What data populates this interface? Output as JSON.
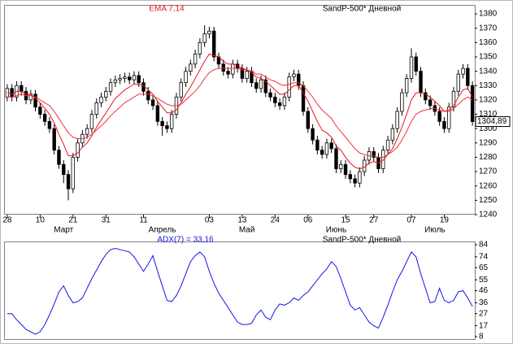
{
  "chart_data": [
    {
      "type": "candlestick",
      "title": "EMA 7,14",
      "subtitle": "SandP-500* Дневной",
      "categories": [
        "28",
        null,
        null,
        null,
        null,
        null,
        null,
        "10",
        null,
        null,
        null,
        null,
        null,
        null,
        "21",
        null,
        null,
        null,
        null,
        null,
        null,
        "31",
        null,
        null,
        null,
        null,
        null,
        null,
        null,
        "11",
        null,
        null,
        null,
        null,
        null,
        null,
        null,
        null,
        null,
        null,
        null,
        null,
        null,
        "03",
        null,
        null,
        null,
        null,
        null,
        null,
        "13",
        null,
        null,
        null,
        null,
        null,
        null,
        "24",
        null,
        null,
        null,
        null,
        null,
        null,
        "06",
        null,
        null,
        null,
        null,
        null,
        null,
        null,
        "15",
        null,
        null,
        null,
        null,
        null,
        "27",
        null,
        null,
        null,
        null,
        null,
        null,
        null,
        "07",
        null,
        null,
        null,
        null,
        null,
        null,
        "19",
        null,
        null,
        null,
        null,
        null,
        null
      ],
      "months": [
        null,
        null,
        null,
        null,
        null,
        null,
        null,
        null,
        null,
        null,
        null,
        null,
        "Март",
        null,
        null,
        null,
        null,
        null,
        null,
        null,
        null,
        null,
        null,
        null,
        null,
        null,
        null,
        null,
        null,
        null,
        null,
        null,
        null,
        "Апрель",
        null,
        null,
        null,
        null,
        null,
        null,
        null,
        null,
        null,
        null,
        null,
        null,
        null,
        null,
        null,
        null,
        null,
        "Май",
        null,
        null,
        null,
        null,
        null,
        null,
        null,
        null,
        null,
        null,
        null,
        null,
        null,
        null,
        null,
        null,
        null,
        null,
        "Июнь",
        null,
        null,
        null,
        null,
        null,
        null,
        null,
        null,
        null,
        null,
        null,
        null,
        null,
        null,
        null,
        null,
        null,
        null,
        null,
        null,
        "Июль",
        null,
        null,
        null,
        null,
        null,
        null,
        null,
        null
      ],
      "open": [
        1322,
        1328,
        1322,
        1330,
        1326,
        1320,
        1324,
        1315,
        1310,
        1305,
        1300,
        1285,
        1275,
        1268,
        1258,
        1280,
        1290,
        1296,
        1300,
        1310,
        1318,
        1322,
        1326,
        1332,
        1334,
        1335,
        1336,
        1334,
        1337,
        1332,
        1326,
        1320,
        1316,
        1305,
        1302,
        1300,
        1310,
        1322,
        1332,
        1340,
        1345,
        1352,
        1360,
        1366,
        1368,
        1350,
        1345,
        1340,
        1338,
        1345,
        1342,
        1335,
        1340,
        1332,
        1328,
        1334,
        1325,
        1322,
        1318,
        1316,
        1322,
        1336,
        1338,
        1330,
        1312,
        1300,
        1292,
        1285,
        1282,
        1290,
        1286,
        1272,
        1275,
        1268,
        1265,
        1262,
        1270,
        1278,
        1284,
        1280,
        1272,
        1285,
        1292,
        1300,
        1312,
        1325,
        1335,
        1350,
        1340,
        1325,
        1320,
        1316,
        1312,
        1305,
        1300,
        1315,
        1326,
        1338,
        1342,
        1330
      ],
      "high": [
        1331,
        1331,
        1333,
        1333,
        1329,
        1327,
        1327,
        1318,
        1313,
        1308,
        1303,
        1288,
        1278,
        1271,
        1283,
        1293,
        1299,
        1303,
        1313,
        1321,
        1325,
        1329,
        1335,
        1337,
        1338,
        1339,
        1339,
        1340,
        1340,
        1335,
        1329,
        1323,
        1319,
        1308,
        1305,
        1313,
        1325,
        1335,
        1343,
        1348,
        1355,
        1363,
        1372,
        1371,
        1371,
        1353,
        1348,
        1343,
        1348,
        1348,
        1345,
        1343,
        1343,
        1335,
        1337,
        1337,
        1328,
        1325,
        1321,
        1325,
        1339,
        1341,
        1341,
        1333,
        1315,
        1303,
        1295,
        1288,
        1293,
        1293,
        1289,
        1278,
        1278,
        1271,
        1268,
        1273,
        1281,
        1287,
        1287,
        1283,
        1288,
        1295,
        1303,
        1315,
        1328,
        1338,
        1356,
        1353,
        1343,
        1328,
        1323,
        1319,
        1315,
        1308,
        1318,
        1329,
        1341,
        1345,
        1345,
        1333
      ],
      "low": [
        1319,
        1319,
        1319,
        1323,
        1317,
        1317,
        1312,
        1307,
        1302,
        1297,
        1282,
        1272,
        1262,
        1250,
        1255,
        1277,
        1287,
        1293,
        1297,
        1307,
        1315,
        1319,
        1323,
        1329,
        1331,
        1332,
        1331,
        1331,
        1329,
        1323,
        1317,
        1313,
        1302,
        1295,
        1297,
        1297,
        1307,
        1319,
        1329,
        1337,
        1342,
        1349,
        1357,
        1363,
        1347,
        1342,
        1337,
        1335,
        1335,
        1339,
        1332,
        1332,
        1329,
        1325,
        1325,
        1322,
        1319,
        1315,
        1313,
        1313,
        1319,
        1333,
        1327,
        1309,
        1297,
        1289,
        1282,
        1279,
        1279,
        1283,
        1269,
        1269,
        1265,
        1262,
        1259,
        1259,
        1267,
        1275,
        1277,
        1269,
        1269,
        1282,
        1289,
        1297,
        1309,
        1322,
        1332,
        1337,
        1322,
        1317,
        1313,
        1309,
        1302,
        1297,
        1297,
        1312,
        1323,
        1335,
        1327,
        1302
      ],
      "close": [
        1328,
        1322,
        1330,
        1326,
        1320,
        1324,
        1315,
        1310,
        1305,
        1300,
        1285,
        1275,
        1268,
        1258,
        1280,
        1290,
        1296,
        1300,
        1310,
        1318,
        1322,
        1326,
        1332,
        1334,
        1335,
        1336,
        1334,
        1337,
        1332,
        1326,
        1320,
        1316,
        1305,
        1302,
        1300,
        1310,
        1322,
        1332,
        1340,
        1345,
        1352,
        1360,
        1366,
        1368,
        1350,
        1345,
        1340,
        1338,
        1345,
        1342,
        1335,
        1340,
        1332,
        1328,
        1334,
        1325,
        1322,
        1318,
        1316,
        1322,
        1336,
        1338,
        1330,
        1312,
        1300,
        1292,
        1285,
        1282,
        1290,
        1286,
        1272,
        1275,
        1268,
        1265,
        1262,
        1270,
        1278,
        1284,
        1280,
        1272,
        1285,
        1292,
        1300,
        1312,
        1325,
        1335,
        1350,
        1340,
        1325,
        1320,
        1316,
        1312,
        1305,
        1300,
        1315,
        1326,
        1338,
        1342,
        1330,
        1304.89
      ],
      "series": [
        {
          "color": "#e8141e",
          "values": [
            1325,
            1324,
            1326,
            1326,
            1324,
            1324,
            1321,
            1318,
            1314,
            1310,
            1304,
            1296,
            1289,
            1281,
            1281,
            1283,
            1287,
            1290,
            1295,
            1301,
            1306,
            1311,
            1316,
            1321,
            1324,
            1327,
            1329,
            1331,
            1331,
            1330,
            1327,
            1324,
            1319,
            1315,
            1311,
            1311,
            1313,
            1318,
            1324,
            1329,
            1335,
            1341,
            1347,
            1352,
            1351,
            1350,
            1347,
            1345,
            1345,
            1344,
            1342,
            1341,
            1339,
            1336,
            1335,
            1333,
            1330,
            1327,
            1324,
            1324,
            1327,
            1330,
            1330,
            1325,
            1319,
            1312,
            1305,
            1299,
            1297,
            1294,
            1288,
            1285,
            1280,
            1276,
            1273,
            1272,
            1273,
            1276,
            1277,
            1276,
            1278,
            1282,
            1286,
            1293,
            1301,
            1310,
            1320,
            1325,
            1325,
            1324,
            1322,
            1319,
            1316,
            1312,
            1313,
            1316,
            1322,
            1327,
            1328,
            1322
          ]
        },
        {
          "color": "#f0323c",
          "values": [
            1322,
            1322,
            1323,
            1324,
            1323,
            1323,
            1322,
            1320,
            1318,
            1316,
            1312,
            1307,
            1302,
            1297,
            1294,
            1293,
            1293,
            1294,
            1296,
            1299,
            1302,
            1305,
            1309,
            1312,
            1315,
            1318,
            1320,
            1322,
            1324,
            1324,
            1324,
            1323,
            1321,
            1319,
            1317,
            1316,
            1316,
            1317,
            1320,
            1323,
            1326,
            1330,
            1335,
            1339,
            1341,
            1342,
            1342,
            1342,
            1342,
            1342,
            1341,
            1341,
            1340,
            1338,
            1338,
            1336,
            1334,
            1333,
            1331,
            1330,
            1331,
            1332,
            1332,
            1330,
            1326,
            1322,
            1317,
            1313,
            1310,
            1307,
            1302,
            1298,
            1294,
            1290,
            1286,
            1283,
            1282,
            1281,
            1281,
            1280,
            1280,
            1282,
            1284,
            1287,
            1292,
            1298,
            1305,
            1310,
            1312,
            1313,
            1314,
            1314,
            1313,
            1312,
            1312,
            1314,
            1317,
            1320,
            1322,
            1320
          ]
        }
      ],
      "last_price": {
        "value": 1304.89,
        "label": "1304,89"
      },
      "ylim": [
        1240,
        1384
      ],
      "yticks": [
        1240,
        1250,
        1260,
        1270,
        1280,
        1290,
        1300,
        1310,
        1320,
        1330,
        1340,
        1350,
        1360,
        1370,
        1380
      ]
    },
    {
      "type": "line",
      "title": "ADX(7) = 33,16",
      "subtitle": "SandP-500* Дневной",
      "color": "#1414e6",
      "values": [
        27,
        27,
        22,
        18,
        14,
        12,
        10,
        12,
        18,
        26,
        35,
        45,
        50,
        42,
        36,
        37,
        40,
        48,
        56,
        63,
        70,
        76,
        80,
        81,
        80,
        79,
        78,
        74,
        68,
        62,
        68,
        75,
        62,
        50,
        38,
        37,
        42,
        50,
        60,
        70,
        75,
        78,
        74,
        62,
        52,
        44,
        38,
        32,
        26,
        20,
        18,
        18,
        19,
        26,
        30,
        24,
        22,
        30,
        35,
        34,
        36,
        40,
        38,
        42,
        45,
        50,
        55,
        60,
        64,
        70,
        66,
        56,
        45,
        34,
        30,
        32,
        26,
        20,
        17,
        15,
        24,
        34,
        45,
        55,
        62,
        70,
        78,
        74,
        60,
        48,
        36,
        37,
        48,
        38,
        36,
        38,
        45,
        46,
        40,
        33
      ],
      "ylim": [
        8,
        84
      ],
      "yticks": [
        8,
        17,
        27,
        36,
        46,
        55,
        65,
        74,
        84
      ]
    }
  ]
}
